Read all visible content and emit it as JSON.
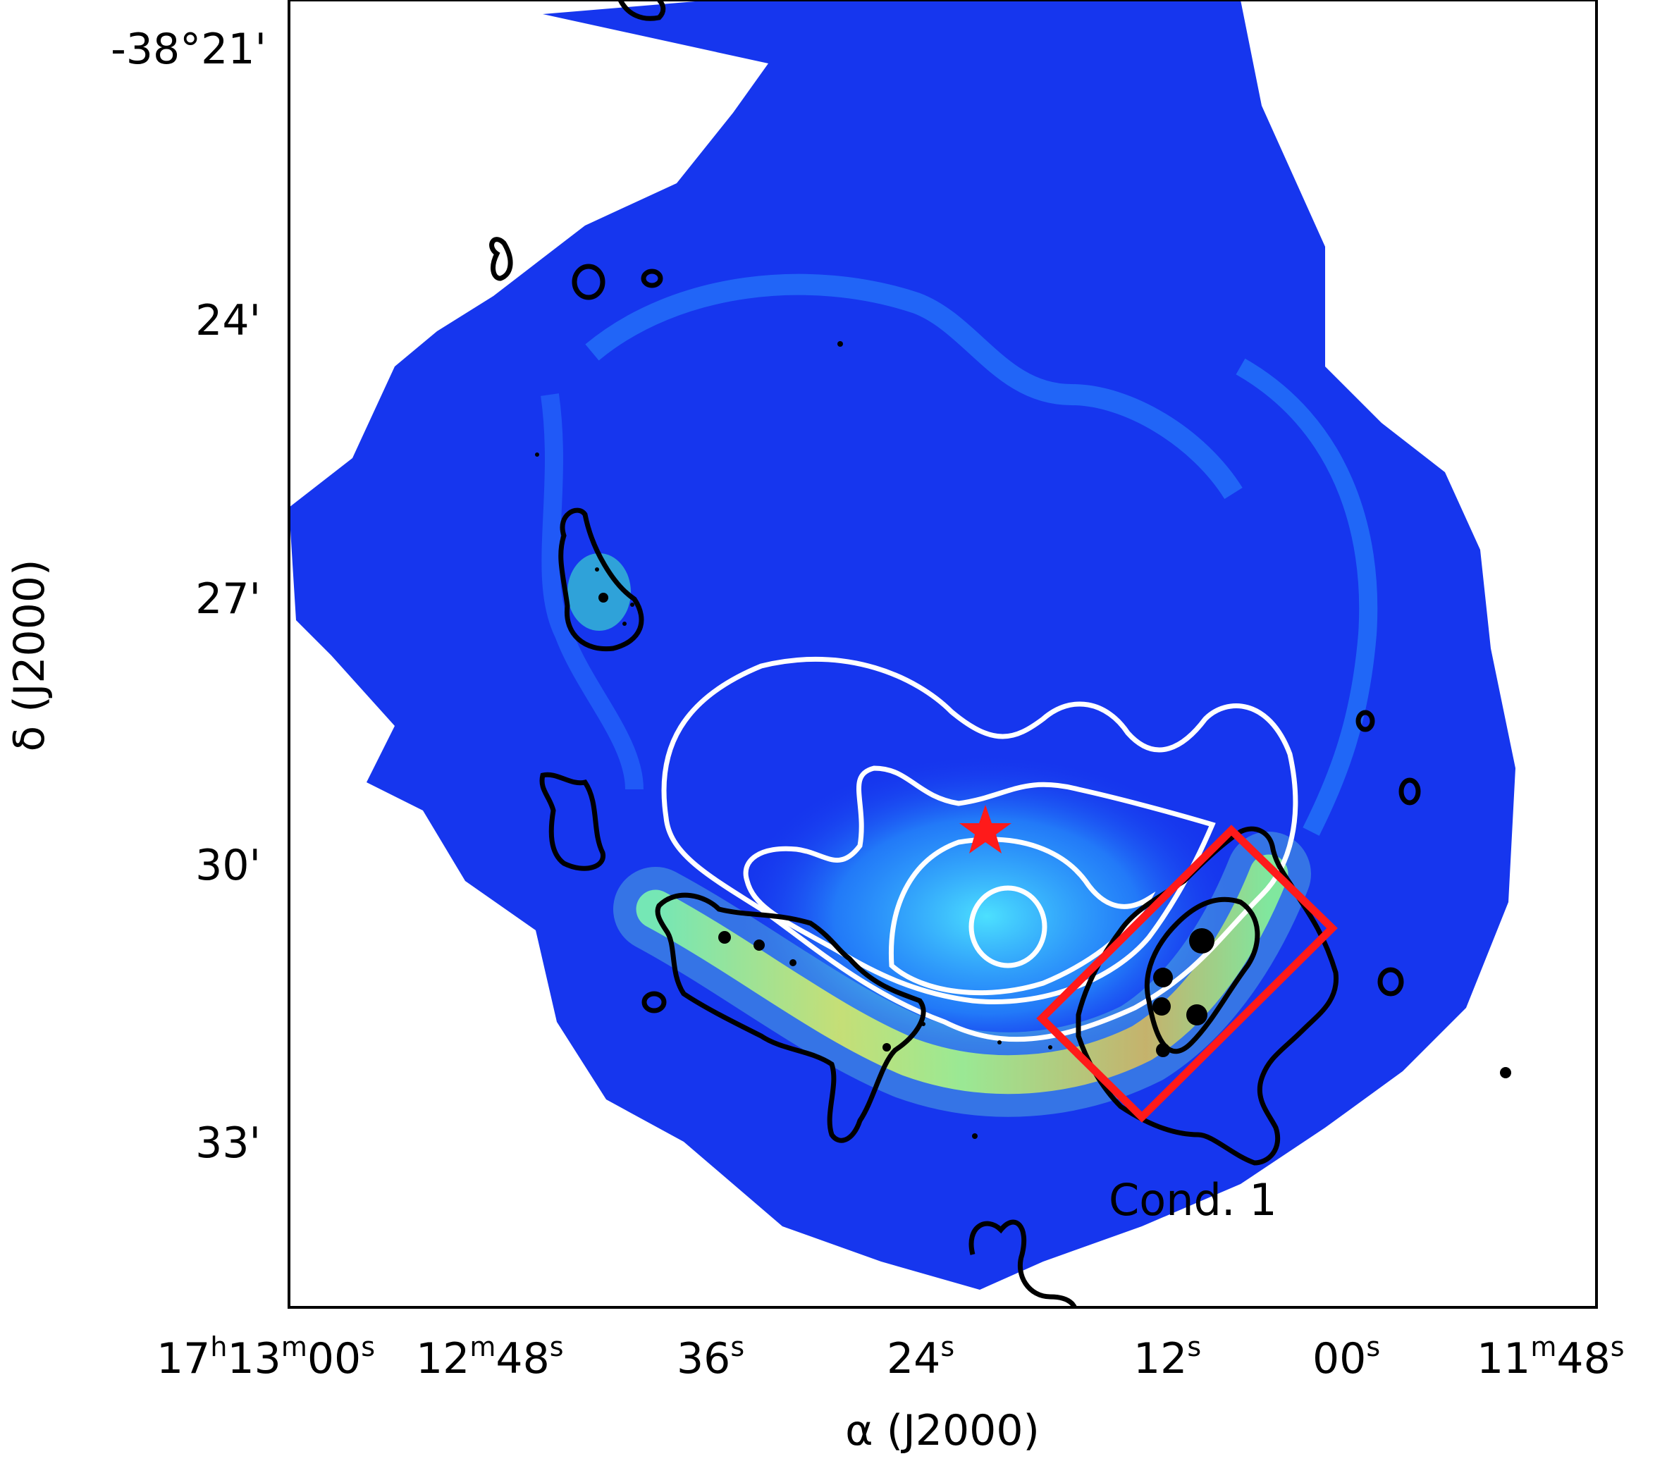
{
  "figure": {
    "x_axis": {
      "label": "α (J2000)",
      "ticks": [
        {
          "main": "17",
          "sup1": "h",
          "mid": "13",
          "sup2": "m",
          "tail": "00",
          "sup3": "s"
        },
        {
          "main": "12",
          "sup1": "m",
          "mid": "48",
          "sup2": "s",
          "tail": "",
          "sup3": ""
        },
        {
          "main": "36",
          "sup1": "s",
          "mid": "",
          "sup2": "",
          "tail": "",
          "sup3": ""
        },
        {
          "main": "24",
          "sup1": "s",
          "mid": "",
          "sup2": "",
          "tail": "",
          "sup3": ""
        },
        {
          "main": "12",
          "sup1": "s",
          "mid": "",
          "sup2": "",
          "tail": "",
          "sup3": ""
        },
        {
          "main": "00",
          "sup1": "s",
          "mid": "",
          "sup2": "",
          "tail": "",
          "sup3": ""
        },
        {
          "main": "11",
          "sup1": "m",
          "mid": "48",
          "sup2": "s",
          "tail": "",
          "sup3": ""
        }
      ]
    },
    "y_axis": {
      "label": "δ (J2000)",
      "ticks": [
        "-38°21'",
        "24'",
        "27'",
        "30'",
        "33'"
      ]
    },
    "annotation": "Cond. 1",
    "colors": {
      "background_map": "#1a3cf0",
      "star_marker": "#ff1a1a",
      "box": "#ff1a1a",
      "dark_contour": "#000000",
      "light_contour": "#ffffff"
    },
    "markers": {
      "star": "star-icon",
      "point_sources": "filled-circle-icon"
    }
  }
}
